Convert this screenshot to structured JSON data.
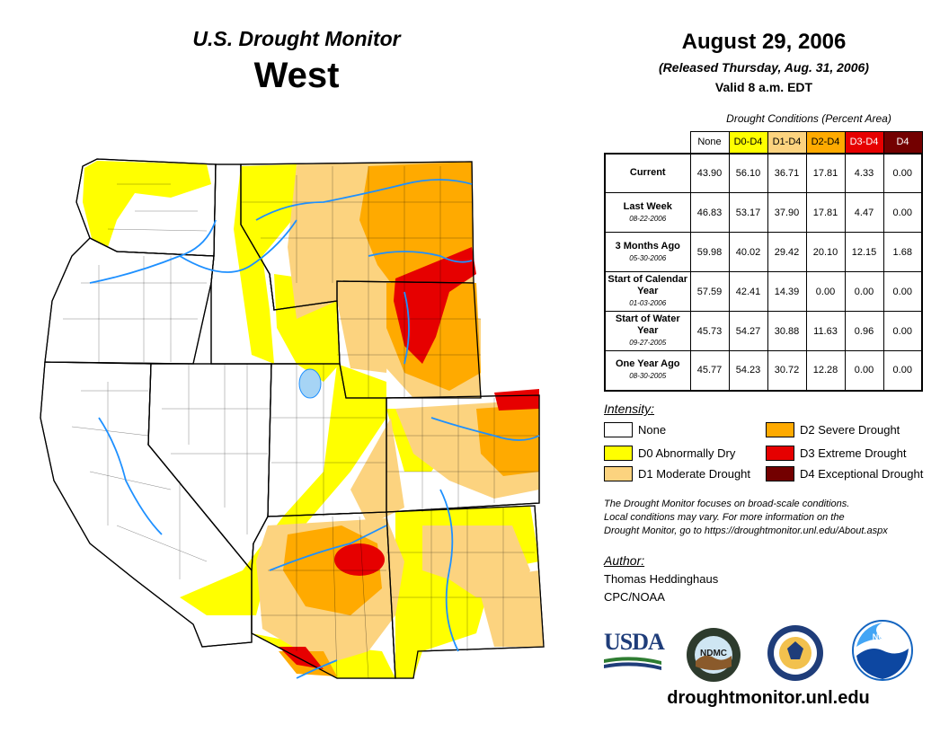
{
  "header": {
    "title": "U.S. Drought Monitor",
    "region": "West",
    "date": "August 29, 2006",
    "released": "(Released Thursday, Aug. 31, 2006)",
    "valid": "Valid 8 a.m. EDT"
  },
  "table": {
    "caption": "Drought Conditions (Percent Area)",
    "columns": [
      "None",
      "D0-D4",
      "D1-D4",
      "D2-D4",
      "D3-D4",
      "D4"
    ],
    "column_colors": [
      "#ffffff",
      "#ffff00",
      "#fcd37f",
      "#ffaa00",
      "#e60000",
      "#730000"
    ],
    "rows": [
      {
        "label": "Current",
        "sub": "",
        "values": [
          "43.90",
          "56.10",
          "36.71",
          "17.81",
          "4.33",
          "0.00"
        ]
      },
      {
        "label": "Last Week",
        "sub": "08-22-2006",
        "values": [
          "46.83",
          "53.17",
          "37.90",
          "17.81",
          "4.47",
          "0.00"
        ]
      },
      {
        "label": "3 Months Ago",
        "sub": "05-30-2006",
        "values": [
          "59.98",
          "40.02",
          "29.42",
          "20.10",
          "12.15",
          "1.68"
        ]
      },
      {
        "label": "Start of Calendar Year",
        "sub": "01-03-2006",
        "values": [
          "57.59",
          "42.41",
          "14.39",
          "0.00",
          "0.00",
          "0.00"
        ]
      },
      {
        "label": "Start of Water Year",
        "sub": "09-27-2005",
        "values": [
          "45.73",
          "54.27",
          "30.88",
          "11.63",
          "0.96",
          "0.00"
        ]
      },
      {
        "label": "One Year Ago",
        "sub": "08-30-2005",
        "values": [
          "45.77",
          "54.23",
          "30.72",
          "12.28",
          "0.00",
          "0.00"
        ]
      }
    ]
  },
  "legend": {
    "title": "Intensity:",
    "items": [
      {
        "label": "None",
        "color": "#ffffff"
      },
      {
        "label": "D0 Abnormally Dry",
        "color": "#ffff00"
      },
      {
        "label": "D1 Moderate Drought",
        "color": "#fcd37f"
      },
      {
        "label": "D2 Severe Drought",
        "color": "#ffaa00"
      },
      {
        "label": "D3 Extreme Drought",
        "color": "#e60000"
      },
      {
        "label": "D4 Exceptional Drought",
        "color": "#730000"
      }
    ]
  },
  "note": {
    "line1": "The Drought Monitor focuses on broad-scale conditions.",
    "line2": "Local conditions may vary. For more information on the",
    "line3": "Drought Monitor, go to https://droughtmonitor.unl.edu/About.aspx"
  },
  "author": {
    "title": "Author:",
    "name": "Thomas Heddinghaus",
    "org": "CPC/NOAA"
  },
  "logos": {
    "usda": "USDA",
    "ndmc": "NDMC",
    "noaa": "NOAA"
  },
  "website": "droughtmonitor.unl.edu"
}
